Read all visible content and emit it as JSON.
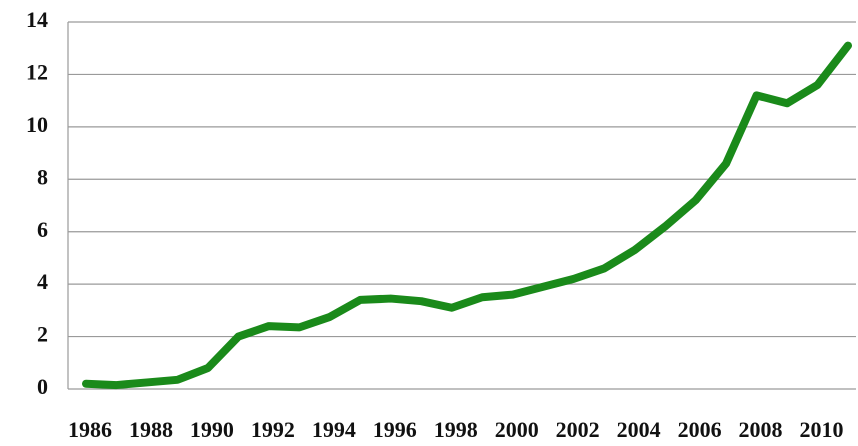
{
  "chart_data": {
    "type": "line",
    "categories": [
      "1986",
      null,
      "1988",
      null,
      "1990",
      null,
      "1992",
      null,
      "1994",
      null,
      "1996",
      null,
      "1998",
      null,
      "2000",
      null,
      "2002",
      null,
      "2004",
      null,
      "2006",
      null,
      "2008",
      null,
      "2010",
      null
    ],
    "series": [
      {
        "color": "#1a8a1a",
        "values": [
          0.2,
          0.15,
          0.25,
          0.35,
          0.8,
          2.0,
          2.4,
          2.35,
          2.75,
          3.4,
          3.45,
          3.35,
          3.1,
          3.5,
          3.6,
          3.9,
          4.2,
          4.6,
          5.3,
          6.2,
          7.2,
          8.6,
          11.2,
          10.9,
          11.6,
          13.1
        ]
      }
    ],
    "ylim": [
      0,
      14
    ],
    "yticks": [
      0,
      2,
      4,
      6,
      8,
      10,
      12,
      14
    ],
    "grid": true
  }
}
